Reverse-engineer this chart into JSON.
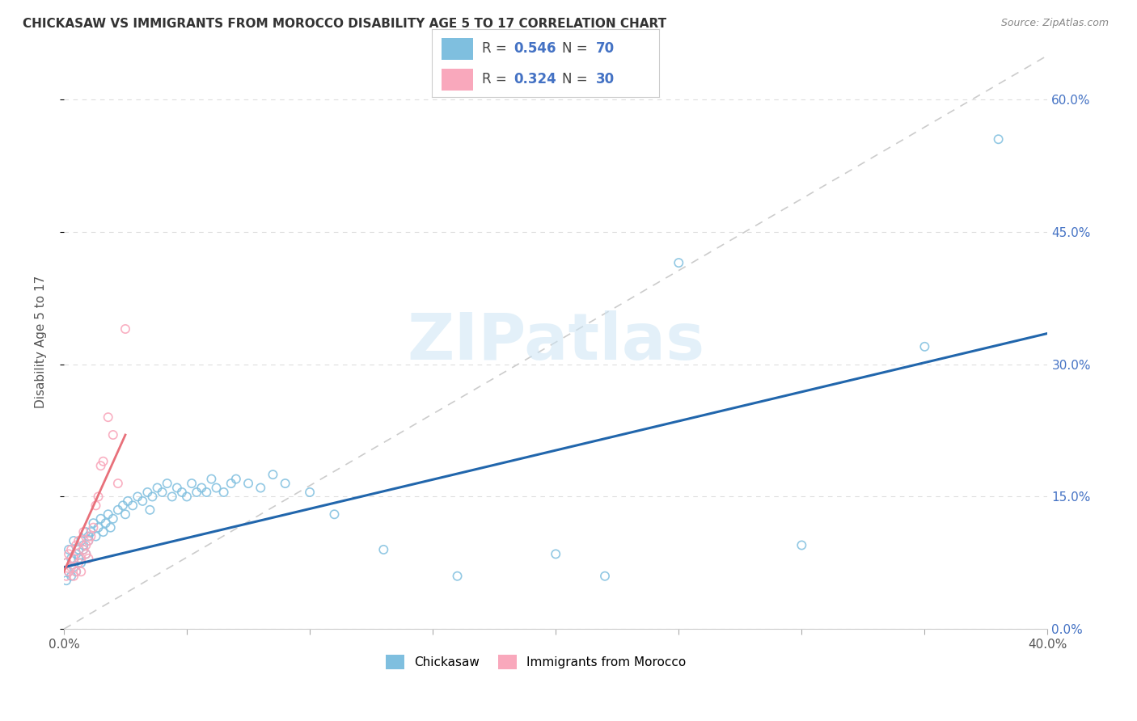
{
  "title": "CHICKASAW VS IMMIGRANTS FROM MOROCCO DISABILITY AGE 5 TO 17 CORRELATION CHART",
  "source": "Source: ZipAtlas.com",
  "ylabel": "Disability Age 5 to 17",
  "legend_label_1": "Chickasaw",
  "legend_label_2": "Immigrants from Morocco",
  "R1": 0.546,
  "N1": 70,
  "R2": 0.324,
  "N2": 30,
  "xlim": [
    0.0,
    0.4
  ],
  "ylim": [
    0.0,
    0.65
  ],
  "xticks": [
    0.0,
    0.05,
    0.1,
    0.15,
    0.2,
    0.25,
    0.3,
    0.35,
    0.4
  ],
  "xtick_labels": [
    "0.0%",
    "",
    "",
    "",
    "",
    "",
    "",
    "",
    "40.0%"
  ],
  "yticks_right": [
    0.0,
    0.15,
    0.3,
    0.45,
    0.6
  ],
  "ytick_labels_right": [
    "0.0%",
    "15.0%",
    "30.0%",
    "45.0%",
    "60.0%"
  ],
  "color_blue": "#7fbfdf",
  "color_pink": "#f9a8bc",
  "color_line_blue": "#2166ac",
  "color_line_pink": "#e8707a",
  "color_diag": "#cccccc",
  "watermark": "ZIPatlas",
  "chickasaw_x": [
    0.001,
    0.001,
    0.002,
    0.002,
    0.003,
    0.003,
    0.004,
    0.004,
    0.005,
    0.005,
    0.006,
    0.006,
    0.007,
    0.007,
    0.008,
    0.008,
    0.009,
    0.009,
    0.01,
    0.01,
    0.011,
    0.012,
    0.013,
    0.014,
    0.015,
    0.016,
    0.017,
    0.018,
    0.019,
    0.02,
    0.022,
    0.024,
    0.025,
    0.026,
    0.028,
    0.03,
    0.032,
    0.034,
    0.035,
    0.036,
    0.038,
    0.04,
    0.042,
    0.044,
    0.046,
    0.048,
    0.05,
    0.052,
    0.054,
    0.056,
    0.058,
    0.06,
    0.062,
    0.065,
    0.068,
    0.07,
    0.075,
    0.08,
    0.085,
    0.09,
    0.1,
    0.11,
    0.13,
    0.16,
    0.2,
    0.22,
    0.25,
    0.3,
    0.38,
    0.35
  ],
  "chickasaw_y": [
    0.055,
    0.075,
    0.065,
    0.09,
    0.06,
    0.08,
    0.07,
    0.1,
    0.065,
    0.085,
    0.09,
    0.08,
    0.1,
    0.075,
    0.095,
    0.09,
    0.11,
    0.085,
    0.105,
    0.1,
    0.11,
    0.12,
    0.105,
    0.115,
    0.125,
    0.11,
    0.12,
    0.13,
    0.115,
    0.125,
    0.135,
    0.14,
    0.13,
    0.145,
    0.14,
    0.15,
    0.145,
    0.155,
    0.135,
    0.15,
    0.16,
    0.155,
    0.165,
    0.15,
    0.16,
    0.155,
    0.15,
    0.165,
    0.155,
    0.16,
    0.155,
    0.17,
    0.16,
    0.155,
    0.165,
    0.17,
    0.165,
    0.16,
    0.175,
    0.165,
    0.155,
    0.13,
    0.09,
    0.06,
    0.085,
    0.06,
    0.415,
    0.095,
    0.555,
    0.32
  ],
  "morocco_x": [
    0.001,
    0.001,
    0.002,
    0.002,
    0.003,
    0.003,
    0.004,
    0.004,
    0.005,
    0.005,
    0.006,
    0.006,
    0.007,
    0.007,
    0.008,
    0.008,
    0.009,
    0.009,
    0.01,
    0.01,
    0.011,
    0.012,
    0.013,
    0.014,
    0.015,
    0.016,
    0.018,
    0.02,
    0.022,
    0.025
  ],
  "morocco_y": [
    0.06,
    0.075,
    0.065,
    0.085,
    0.07,
    0.09,
    0.06,
    0.08,
    0.065,
    0.095,
    0.075,
    0.1,
    0.065,
    0.08,
    0.09,
    0.11,
    0.085,
    0.095,
    0.08,
    0.1,
    0.105,
    0.115,
    0.14,
    0.15,
    0.185,
    0.19,
    0.24,
    0.22,
    0.165,
    0.34
  ],
  "blue_line_x": [
    0.0,
    0.4
  ],
  "blue_line_y": [
    0.07,
    0.335
  ],
  "pink_line_x": [
    0.0,
    0.025
  ],
  "pink_line_y": [
    0.065,
    0.22
  ],
  "diag_line_x": [
    0.0,
    0.4
  ],
  "diag_line_y": [
    0.0,
    0.65
  ]
}
